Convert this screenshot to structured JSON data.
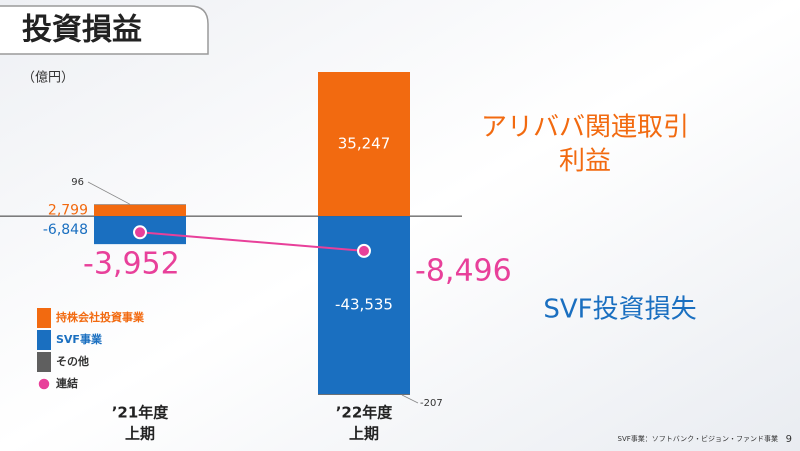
{
  "chart_data": {
    "type": "bar",
    "title": "投資損益",
    "unit_label": "（億円）",
    "categories": [
      "’21年度",
      "’22年度"
    ],
    "category_sublabels": [
      "上期",
      "上期"
    ],
    "series": [
      {
        "name": "持株会社投資事業",
        "color": "#f26a10",
        "values": [
          2799,
          35247
        ],
        "value_labels": [
          "2,799",
          "35,247"
        ]
      },
      {
        "name": "SVF事業",
        "color": "#1a6fc0",
        "values": [
          -6848,
          -43535
        ],
        "value_labels": [
          "-6,848",
          "-43,535"
        ]
      },
      {
        "name": "その他",
        "color": "#5f5f5f",
        "values": [
          96,
          -207
        ],
        "value_labels": [
          "96",
          "-207"
        ]
      },
      {
        "name": "連結",
        "color": "#e8409a",
        "type": "line",
        "values": [
          -3952,
          -8496
        ],
        "value_labels": [
          "-3,952",
          "-8,496"
        ]
      }
    ],
    "annotations": [
      "アリババ関連取引",
      "利益",
      "SVF投資損失"
    ],
    "footnote": "SVF事業：ソフトバンク・ビジョン・ファンド事業",
    "page_number": "9"
  }
}
